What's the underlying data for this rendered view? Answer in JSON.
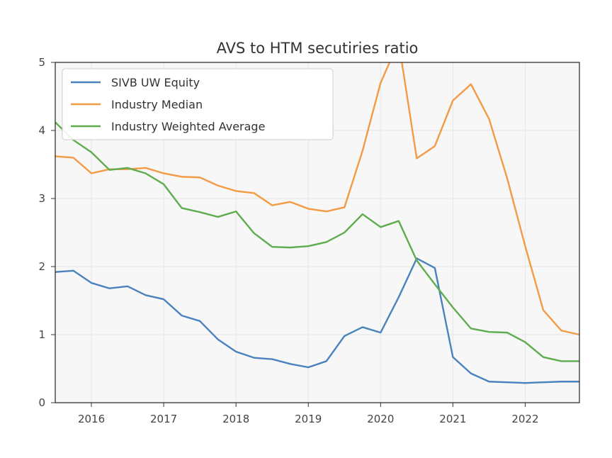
{
  "chart_data": {
    "type": "line",
    "title": "AVS to HTM secutiries ratio",
    "xlabel": "",
    "ylabel": "",
    "x": [
      2015.5,
      2015.75,
      2016.0,
      2016.25,
      2016.5,
      2016.75,
      2017.0,
      2017.25,
      2017.5,
      2017.75,
      2018.0,
      2018.25,
      2018.5,
      2018.75,
      2019.0,
      2019.25,
      2019.5,
      2019.75,
      2020.0,
      2020.25,
      2020.5,
      2020.75,
      2021.0,
      2021.25,
      2021.5,
      2021.75,
      2022.0,
      2022.25,
      2022.5,
      2022.75
    ],
    "xlim": [
      2015.5,
      2022.75
    ],
    "ylim": [
      0,
      5
    ],
    "xticks": [
      2016,
      2017,
      2018,
      2019,
      2020,
      2021,
      2022
    ],
    "yticks": [
      0,
      1,
      2,
      3,
      4,
      5
    ],
    "grid": true,
    "legend_position": "top-left",
    "series": [
      {
        "name": "SIVB UW Equity",
        "color": "#4a82bd",
        "values": [
          1.92,
          1.94,
          1.76,
          1.68,
          1.71,
          1.58,
          1.52,
          1.28,
          1.2,
          0.93,
          0.75,
          0.66,
          0.64,
          0.57,
          0.52,
          0.61,
          0.98,
          1.11,
          1.03,
          1.55,
          2.12,
          1.98,
          0.67,
          0.43,
          0.31,
          0.3,
          0.29,
          0.3,
          0.31,
          0.31
        ]
      },
      {
        "name": "Industry Median",
        "color": "#f39a45",
        "values": [
          3.62,
          3.6,
          3.37,
          3.43,
          3.43,
          3.45,
          3.37,
          3.32,
          3.31,
          3.19,
          3.11,
          3.08,
          2.9,
          2.95,
          2.85,
          2.81,
          2.87,
          3.7,
          4.7,
          5.3,
          3.59,
          3.77,
          4.44,
          4.68,
          4.17,
          3.3,
          2.3,
          1.36,
          1.06,
          1.0
        ]
      },
      {
        "name": "Industry Weighted Average",
        "color": "#5fac4e",
        "values": [
          4.12,
          3.86,
          3.68,
          3.42,
          3.45,
          3.37,
          3.21,
          2.86,
          2.8,
          2.73,
          2.81,
          2.49,
          2.29,
          2.28,
          2.3,
          2.36,
          2.5,
          2.77,
          2.58,
          2.67,
          2.09,
          1.74,
          1.4,
          1.09,
          1.04,
          1.03,
          0.89,
          0.67,
          0.61,
          0.61
        ]
      }
    ]
  }
}
